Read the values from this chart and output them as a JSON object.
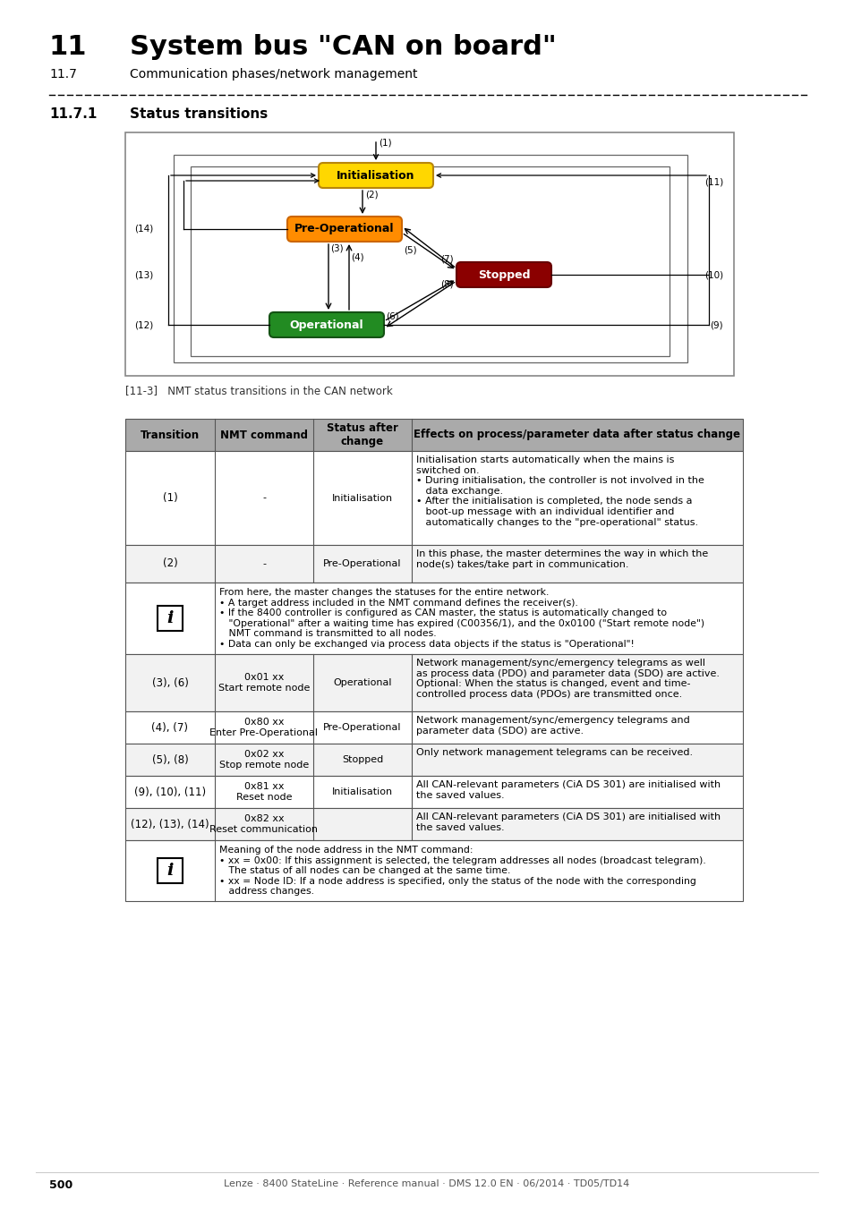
{
  "title_number": "11",
  "title_text": "System bus \"CAN on board\"",
  "subtitle_number": "11.7",
  "subtitle_text": "Communication phases/network management",
  "section_number": "11.7.1",
  "section_title": "Status transitions",
  "figure_caption": "[11-3]   NMT status transitions in the CAN network",
  "page_number": "500",
  "footer_text": "Lenze · 8400 StateLine · Reference manual · DMS 12.0 EN · 06/2014 · TD05/TD14",
  "init_color": "#FFD700",
  "init_edge": "#B8860B",
  "preop_color": "#FF8C00",
  "preop_edge": "#CC6600",
  "stopped_color": "#8B0000",
  "stopped_edge": "#660000",
  "oper_color": "#228B22",
  "oper_edge": "#145214",
  "table_header_bg": "#AAAAAA",
  "table_alt_bg": "#F2F2F2"
}
